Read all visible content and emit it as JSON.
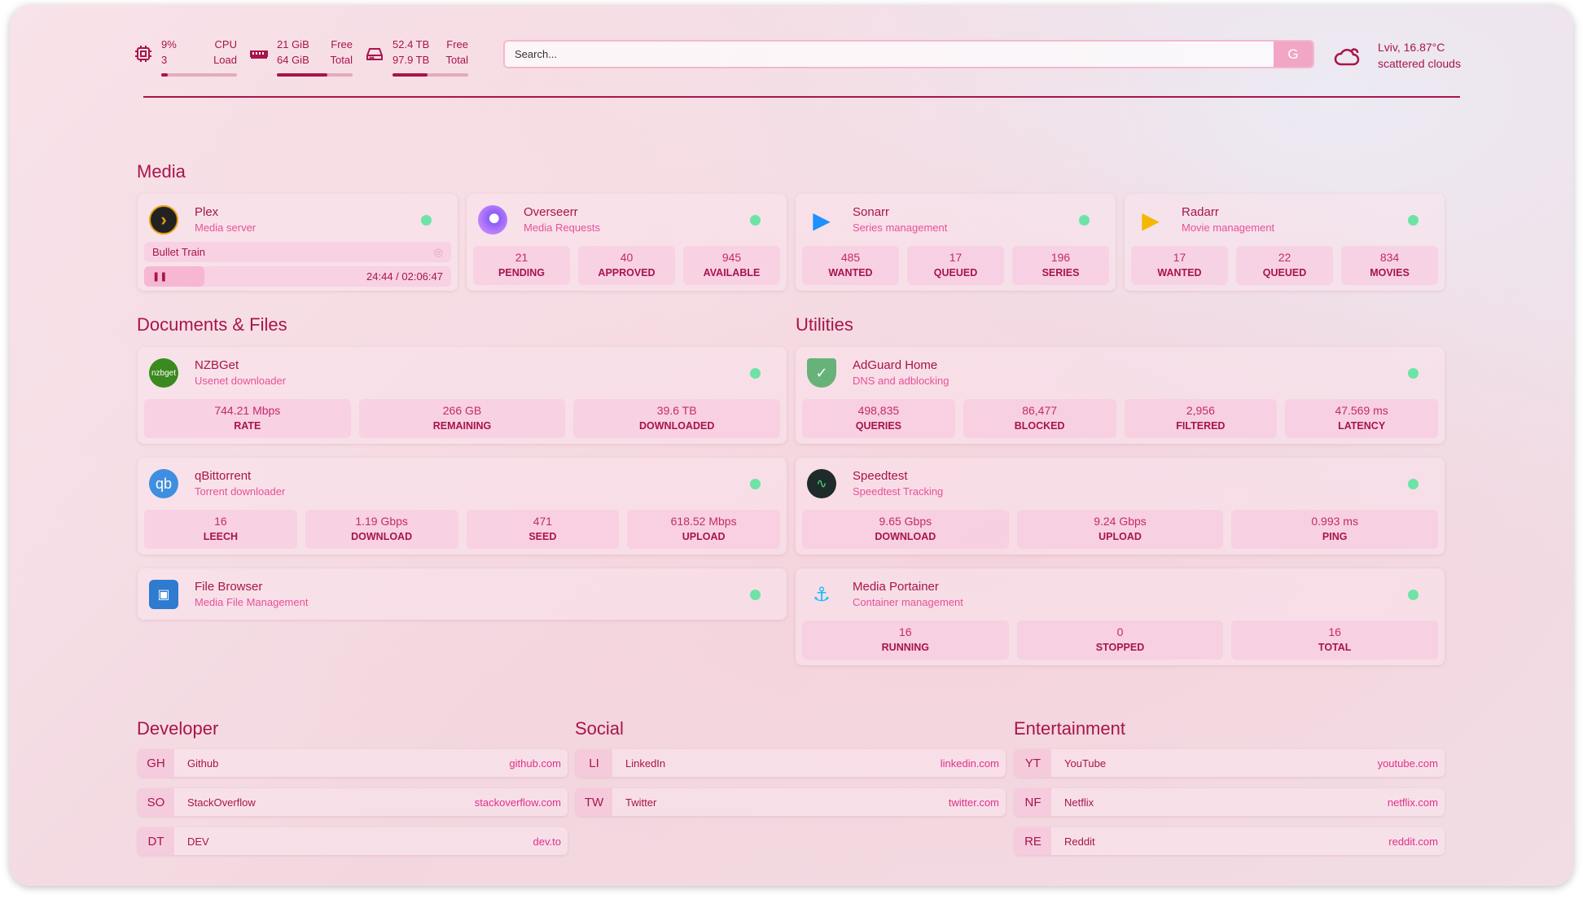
{
  "header": {
    "cpu": {
      "icon": "cpu-icon",
      "value": "9%",
      "sub": "3",
      "label1": "CPU",
      "label2": "Load",
      "percent": 9
    },
    "memory": {
      "icon": "memory-icon",
      "value": "21 GiB",
      "sub": "64 GiB",
      "label1": "Free",
      "label2": "Total",
      "percent": 67
    },
    "disk": {
      "icon": "disk-icon",
      "value": "52.4 TB",
      "sub": "97.9 TB",
      "label1": "Free",
      "label2": "Total",
      "percent": 46
    },
    "search": {
      "placeholder": "Search...",
      "button": "G"
    },
    "weather": {
      "icon": "cloud-icon",
      "line1": "Lviv, 16.87°C",
      "line2": "scattered clouds"
    }
  },
  "colors": {
    "accent": "#a8144c",
    "status_ok": "#6ee3a6",
    "subtitle": "#e8509a"
  },
  "media": {
    "title": "Media",
    "plex": {
      "name": "Plex",
      "desc": "Media server",
      "now_playing": "Bullet Train",
      "time": "24:44 / 02:06:47",
      "progress": 0.195
    },
    "cards": [
      {
        "name": "Overseerr",
        "desc": "Media Requests",
        "stats": [
          {
            "v": "21",
            "l": "PENDING"
          },
          {
            "v": "40",
            "l": "APPROVED"
          },
          {
            "v": "945",
            "l": "AVAILABLE"
          }
        ]
      },
      {
        "name": "Sonarr",
        "desc": "Series management",
        "stats": [
          {
            "v": "485",
            "l": "WANTED"
          },
          {
            "v": "17",
            "l": "QUEUED"
          },
          {
            "v": "196",
            "l": "SERIES"
          }
        ]
      },
      {
        "name": "Radarr",
        "desc": "Movie management",
        "stats": [
          {
            "v": "17",
            "l": "WANTED"
          },
          {
            "v": "22",
            "l": "QUEUED"
          },
          {
            "v": "834",
            "l": "MOVIES"
          }
        ]
      }
    ]
  },
  "documents": {
    "title": "Documents & Files",
    "cards": [
      {
        "name": "NZBGet",
        "desc": "Usenet downloader",
        "stats": [
          {
            "v": "744.21 Mbps",
            "l": "RATE"
          },
          {
            "v": "266 GB",
            "l": "REMAINING"
          },
          {
            "v": "39.6 TB",
            "l": "DOWNLOADED"
          }
        ]
      },
      {
        "name": "qBittorrent",
        "desc": "Torrent downloader",
        "stats": [
          {
            "v": "16",
            "l": "LEECH"
          },
          {
            "v": "1.19 Gbps",
            "l": "DOWNLOAD"
          },
          {
            "v": "471",
            "l": "SEED"
          },
          {
            "v": "618.52 Mbps",
            "l": "UPLOAD"
          }
        ]
      },
      {
        "name": "File Browser",
        "desc": "Media File Management",
        "stats": []
      }
    ]
  },
  "utilities": {
    "title": "Utilities",
    "cards": [
      {
        "name": "AdGuard Home",
        "desc": "DNS and adblocking",
        "stats": [
          {
            "v": "498,835",
            "l": "QUERIES"
          },
          {
            "v": "86,477",
            "l": "BLOCKED"
          },
          {
            "v": "2,956",
            "l": "FILTERED"
          },
          {
            "v": "47.569 ms",
            "l": "LATENCY"
          }
        ]
      },
      {
        "name": "Speedtest",
        "desc": "Speedtest Tracking",
        "stats": [
          {
            "v": "9.65 Gbps",
            "l": "DOWNLOAD"
          },
          {
            "v": "9.24 Gbps",
            "l": "UPLOAD"
          },
          {
            "v": "0.993 ms",
            "l": "PING"
          }
        ]
      },
      {
        "name": "Media Portainer",
        "desc": "Container management",
        "stats": [
          {
            "v": "16",
            "l": "RUNNING"
          },
          {
            "v": "0",
            "l": "STOPPED"
          },
          {
            "v": "16",
            "l": "TOTAL"
          }
        ]
      }
    ]
  },
  "bookmarks": [
    {
      "title": "Developer",
      "items": [
        {
          "abbr": "GH",
          "name": "Github",
          "url": "github.com"
        },
        {
          "abbr": "SO",
          "name": "StackOverflow",
          "url": "stackoverflow.com"
        },
        {
          "abbr": "DT",
          "name": "DEV",
          "url": "dev.to"
        }
      ]
    },
    {
      "title": "Social",
      "items": [
        {
          "abbr": "LI",
          "name": "LinkedIn",
          "url": "linkedin.com"
        },
        {
          "abbr": "TW",
          "name": "Twitter",
          "url": "twitter.com"
        }
      ]
    },
    {
      "title": "Entertainment",
      "items": [
        {
          "abbr": "YT",
          "name": "YouTube",
          "url": "youtube.com"
        },
        {
          "abbr": "NF",
          "name": "Netflix",
          "url": "netflix.com"
        },
        {
          "abbr": "RE",
          "name": "Reddit",
          "url": "reddit.com"
        }
      ]
    }
  ]
}
